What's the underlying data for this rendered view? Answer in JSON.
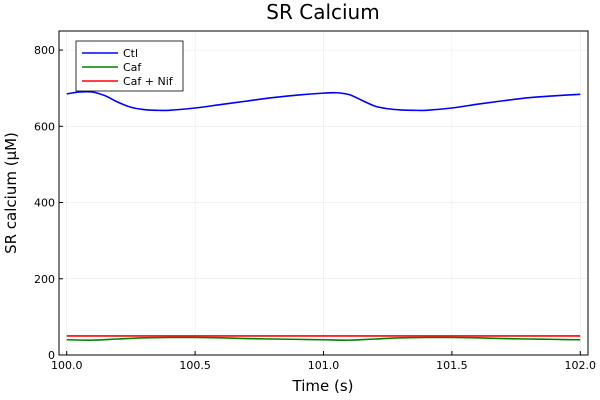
{
  "chart_data": {
    "type": "line",
    "title": "SR Calcium",
    "xlabel": "Time (s)",
    "ylabel": "SR calcium (µM)",
    "xlim": [
      99.97,
      102.03
    ],
    "ylim": [
      0,
      850
    ],
    "xticks": [
      100.0,
      100.5,
      101.0,
      101.5,
      102.0
    ],
    "xtick_labels": [
      "100.0",
      "100.5",
      "101.0",
      "101.5",
      "102.0"
    ],
    "yticks": [
      0,
      200,
      400,
      600,
      800
    ],
    "ytick_labels": [
      "0",
      "200",
      "400",
      "600",
      "800"
    ],
    "grid": true,
    "legend_position": "top-left",
    "series": [
      {
        "name": "Ctl",
        "color": "#0000ff",
        "x": [
          100.0,
          100.05,
          100.1,
          100.15,
          100.2,
          100.25,
          100.3,
          100.35,
          100.4,
          100.5,
          100.6,
          100.7,
          100.8,
          100.9,
          101.0,
          101.05,
          101.1,
          101.15,
          101.2,
          101.25,
          101.3,
          101.35,
          101.4,
          101.5,
          101.6,
          101.7,
          101.8,
          101.9,
          102.0
        ],
        "y": [
          685,
          690,
          690,
          680,
          663,
          650,
          644,
          642,
          642,
          648,
          657,
          666,
          675,
          682,
          687,
          688,
          683,
          668,
          653,
          646,
          643,
          642,
          642,
          648,
          658,
          667,
          675,
          680,
          684
        ]
      },
      {
        "name": "Caf",
        "color": "#008000",
        "x": [
          100.0,
          100.1,
          100.2,
          100.3,
          100.4,
          100.5,
          100.6,
          100.7,
          100.8,
          100.9,
          101.0,
          101.1,
          101.2,
          101.3,
          101.4,
          101.5,
          101.6,
          101.7,
          101.8,
          101.9,
          102.0
        ],
        "y": [
          40,
          39,
          42,
          45,
          46,
          46,
          45,
          43,
          42,
          41,
          40,
          39,
          42,
          45,
          46,
          46,
          45,
          43,
          42,
          41,
          40
        ]
      },
      {
        "name": "Caf + Nif",
        "color": "#ff0000",
        "x": [
          100.0,
          102.0
        ],
        "y": [
          50,
          50
        ]
      }
    ]
  }
}
